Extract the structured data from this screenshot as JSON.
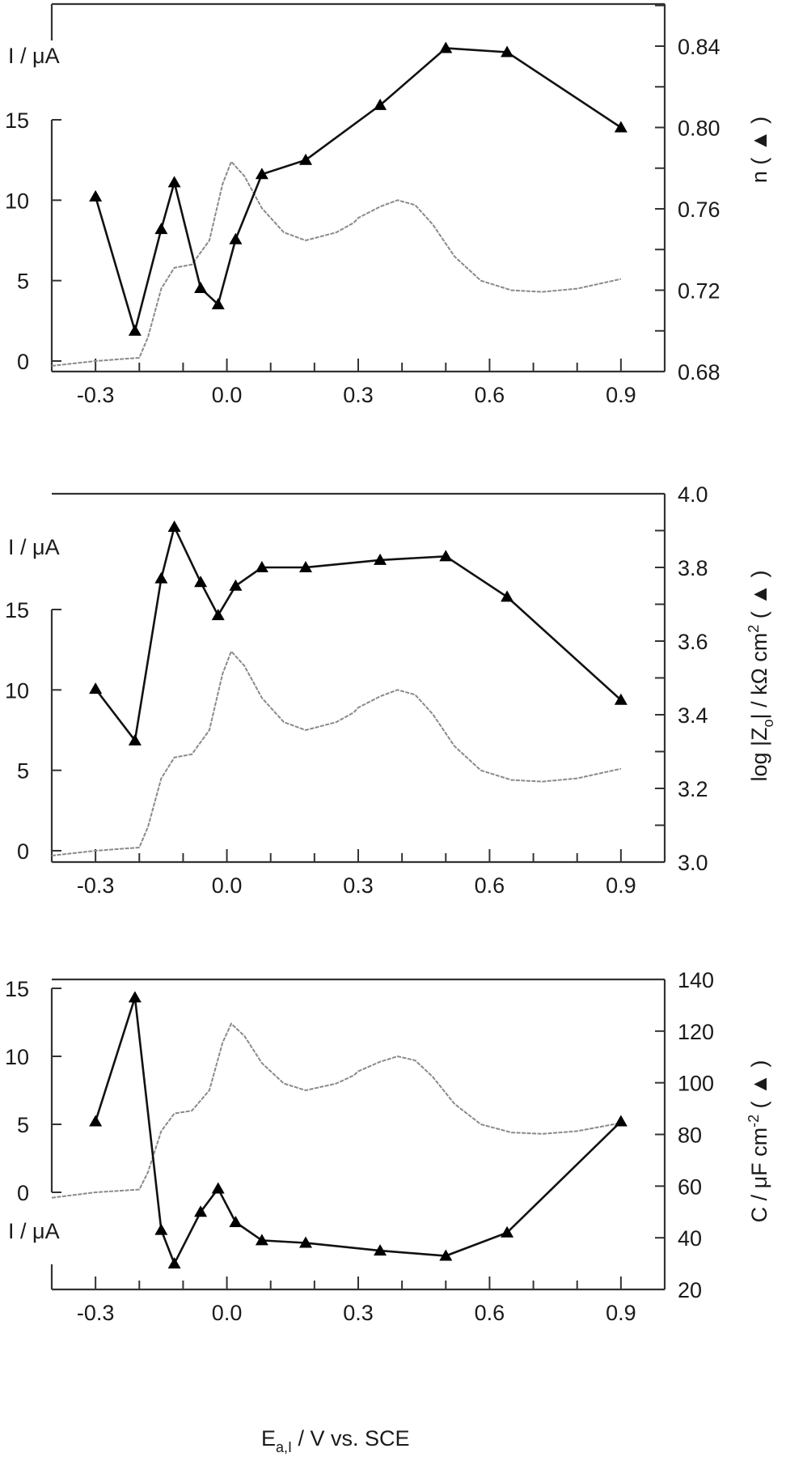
{
  "figure": {
    "x_axis_title": "E",
    "x_axis_title_subscript": "a,I",
    "x_axis_title_rest": " / V vs. SCE",
    "left_axis_label": "I / μA"
  },
  "chart_data": [
    {
      "type": "line",
      "panel": "top",
      "xlabel": "E_a,I / V vs. SCE",
      "ylabel_left": "I / μA",
      "ylabel_right": "n ( ▲ )",
      "xlim": [
        -0.4,
        1.0
      ],
      "ylim_left": [
        -0.3,
        18
      ],
      "ylim_right": [
        0.68,
        0.86
      ],
      "x_ticks": [
        "-0.3",
        "0.0",
        "0.3",
        "0.6",
        "0.9"
      ],
      "y_ticks_left": [
        "0",
        "5",
        "10",
        "15"
      ],
      "y_ticks_right": [
        "0.68",
        "0.72",
        "0.76",
        "0.80",
        "0.84"
      ],
      "grid": false,
      "series": [
        {
          "name": "n",
          "axis": "right",
          "marker": "triangle",
          "x": [
            -0.3,
            -0.21,
            -0.15,
            -0.12,
            -0.06,
            -0.02,
            0.02,
            0.08,
            0.18,
            0.35,
            0.5,
            0.64,
            0.9
          ],
          "values": [
            0.766,
            0.7,
            0.75,
            0.773,
            0.721,
            0.713,
            0.745,
            0.777,
            0.784,
            0.811,
            0.839,
            0.837,
            0.8
          ]
        },
        {
          "name": "I (voltammogram)",
          "axis": "left",
          "style": "dotted grey",
          "x": [
            -0.4,
            -0.3,
            -0.2,
            -0.18,
            -0.15,
            -0.12,
            -0.08,
            -0.04,
            -0.01,
            0.01,
            0.04,
            0.08,
            0.13,
            0.18,
            0.25,
            0.29,
            0.3,
            0.35,
            0.39,
            0.43,
            0.47,
            0.52,
            0.58,
            0.65,
            0.72,
            0.8,
            0.9
          ],
          "values": [
            -0.3,
            0.0,
            0.2,
            1.5,
            4.5,
            5.8,
            6.0,
            7.5,
            11.0,
            12.4,
            11.5,
            9.5,
            8.0,
            7.5,
            8.0,
            8.6,
            8.9,
            9.6,
            10.0,
            9.7,
            8.5,
            6.5,
            5.0,
            4.4,
            4.3,
            4.5,
            5.1
          ]
        }
      ]
    },
    {
      "type": "line",
      "panel": "middle",
      "xlabel": "E_a,I / V vs. SCE",
      "ylabel_left": "I / μA",
      "ylabel_right": "log |Z₀| / kΩ cm² ( ▲ )",
      "xlim": [
        -0.4,
        1.0
      ],
      "ylim_left": [
        -0.5,
        18
      ],
      "ylim_right": [
        3.0,
        4.0
      ],
      "x_ticks": [
        "-0.3",
        "0.0",
        "0.3",
        "0.6",
        "0.9"
      ],
      "y_ticks_left": [
        "0",
        "5",
        "10",
        "15"
      ],
      "y_ticks_right": [
        "3.0",
        "3.2",
        "3.4",
        "3.6",
        "3.8",
        "4.0"
      ],
      "grid": false,
      "series": [
        {
          "name": "log |Z0|",
          "axis": "right",
          "marker": "triangle",
          "x": [
            -0.3,
            -0.21,
            -0.15,
            -0.12,
            -0.06,
            -0.02,
            0.02,
            0.08,
            0.18,
            0.35,
            0.5,
            0.64,
            0.9
          ],
          "values": [
            3.47,
            3.33,
            3.77,
            3.91,
            3.76,
            3.67,
            3.75,
            3.8,
            3.8,
            3.82,
            3.83,
            3.72,
            3.44
          ]
        },
        {
          "name": "I (voltammogram)",
          "axis": "left",
          "style": "dotted grey",
          "x": [
            -0.4,
            -0.3,
            -0.2,
            -0.18,
            -0.15,
            -0.12,
            -0.08,
            -0.04,
            -0.01,
            0.01,
            0.04,
            0.08,
            0.13,
            0.18,
            0.25,
            0.29,
            0.3,
            0.35,
            0.39,
            0.43,
            0.47,
            0.52,
            0.58,
            0.65,
            0.72,
            0.8,
            0.9
          ],
          "values": [
            -0.3,
            0.0,
            0.2,
            1.5,
            4.5,
            5.8,
            6.0,
            7.5,
            11.0,
            12.4,
            11.5,
            9.5,
            8.0,
            7.5,
            8.0,
            8.6,
            8.9,
            9.6,
            10.0,
            9.7,
            8.5,
            6.5,
            5.0,
            4.4,
            4.3,
            4.5,
            5.1
          ]
        }
      ]
    },
    {
      "type": "line",
      "panel": "bottom",
      "xlabel": "E_a,I / V vs. SCE",
      "ylabel_left": "I / μA",
      "ylabel_right": "C / μF cm⁻² ( ▲ )",
      "xlim": [
        -0.4,
        1.0
      ],
      "ylim_left": [
        -0.5,
        15.5
      ],
      "ylim_right": [
        20,
        140
      ],
      "x_ticks": [
        "-0.3",
        "0.0",
        "0.3",
        "0.6",
        "0.9"
      ],
      "y_ticks_left": [
        "0",
        "5",
        "10",
        "15"
      ],
      "y_ticks_right": [
        "20",
        "40",
        "60",
        "80",
        "100",
        "120",
        "140"
      ],
      "grid": false,
      "series": [
        {
          "name": "C",
          "axis": "right",
          "marker": "triangle",
          "x": [
            -0.3,
            -0.21,
            -0.15,
            -0.12,
            -0.06,
            -0.02,
            0.02,
            0.08,
            0.18,
            0.35,
            0.5,
            0.64,
            0.9
          ],
          "values": [
            85,
            133,
            43,
            30,
            50,
            59,
            46,
            39,
            38,
            35,
            33,
            42,
            85
          ]
        },
        {
          "name": "I (voltammogram)",
          "axis": "left",
          "style": "dotted grey",
          "x": [
            -0.4,
            -0.3,
            -0.2,
            -0.18,
            -0.15,
            -0.12,
            -0.08,
            -0.04,
            -0.01,
            0.01,
            0.04,
            0.08,
            0.13,
            0.18,
            0.25,
            0.29,
            0.3,
            0.35,
            0.39,
            0.43,
            0.47,
            0.52,
            0.58,
            0.65,
            0.72,
            0.8,
            0.9
          ],
          "values": [
            -0.4,
            0.0,
            0.2,
            1.5,
            4.5,
            5.8,
            6.0,
            7.5,
            11.0,
            12.4,
            11.5,
            9.5,
            8.0,
            7.5,
            8.0,
            8.6,
            8.9,
            9.6,
            10.0,
            9.7,
            8.5,
            6.5,
            5.0,
            4.4,
            4.3,
            4.5,
            5.1
          ]
        }
      ]
    }
  ]
}
